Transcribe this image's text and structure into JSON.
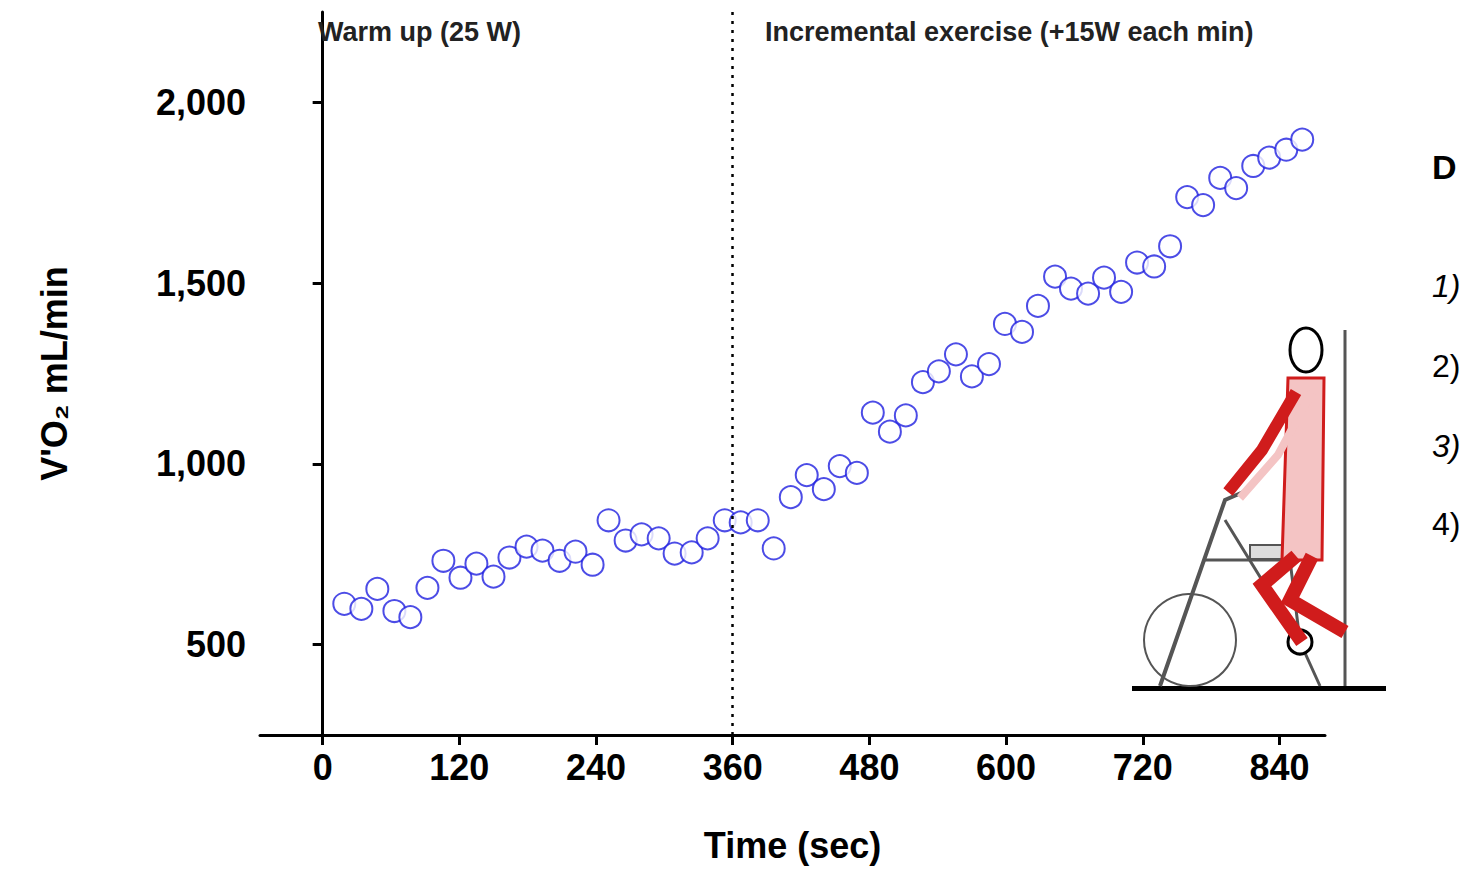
{
  "chart_data": {
    "type": "scatter",
    "xlabel": "Time (sec)",
    "ylabel": "V'O₂ mL/min",
    "x": [
      19,
      34,
      48,
      63,
      77,
      92,
      106,
      121,
      135,
      150,
      164,
      179,
      193,
      208,
      222,
      237,
      251,
      266,
      280,
      295,
      309,
      324,
      338,
      353,
      367,
      382,
      396,
      411,
      425,
      440,
      454,
      469,
      483,
      498,
      512,
      527,
      541,
      556,
      570,
      585,
      599,
      614,
      628,
      643,
      657,
      672,
      686,
      701,
      715,
      730,
      744,
      759,
      773,
      788,
      802,
      817,
      831,
      846,
      860
    ],
    "values": [
      613,
      599,
      654,
      593,
      576,
      657,
      732,
      685,
      724,
      688,
      741,
      771,
      760,
      732,
      757,
      721,
      844,
      788,
      805,
      794,
      752,
      755,
      794,
      844,
      838,
      844,
      766,
      908,
      969,
      930,
      994,
      975,
      1142,
      1089,
      1134,
      1226,
      1256,
      1303,
      1242,
      1276,
      1387,
      1365,
      1437,
      1518,
      1485,
      1471,
      1515,
      1476,
      1557,
      1546,
      1602,
      1738,
      1716,
      1791,
      1763,
      1824,
      1847,
      1869,
      1897
    ],
    "color": "#1f1fe0",
    "marker": "open_circle",
    "xlim": [
      -55,
      880
    ],
    "xticks": [
      0,
      120,
      240,
      360,
      480,
      600,
      720,
      840
    ],
    "ylim": [
      250,
      2250
    ],
    "yticks": [
      500,
      1000,
      1500,
      2000
    ],
    "grid": false,
    "divider_x": 360,
    "annotations": [
      "Warm up (25 W)",
      "Incremental exercise (+15W each min)"
    ],
    "side_texts": [
      "D",
      "1)",
      "2)",
      "3)",
      "4)"
    ]
  }
}
